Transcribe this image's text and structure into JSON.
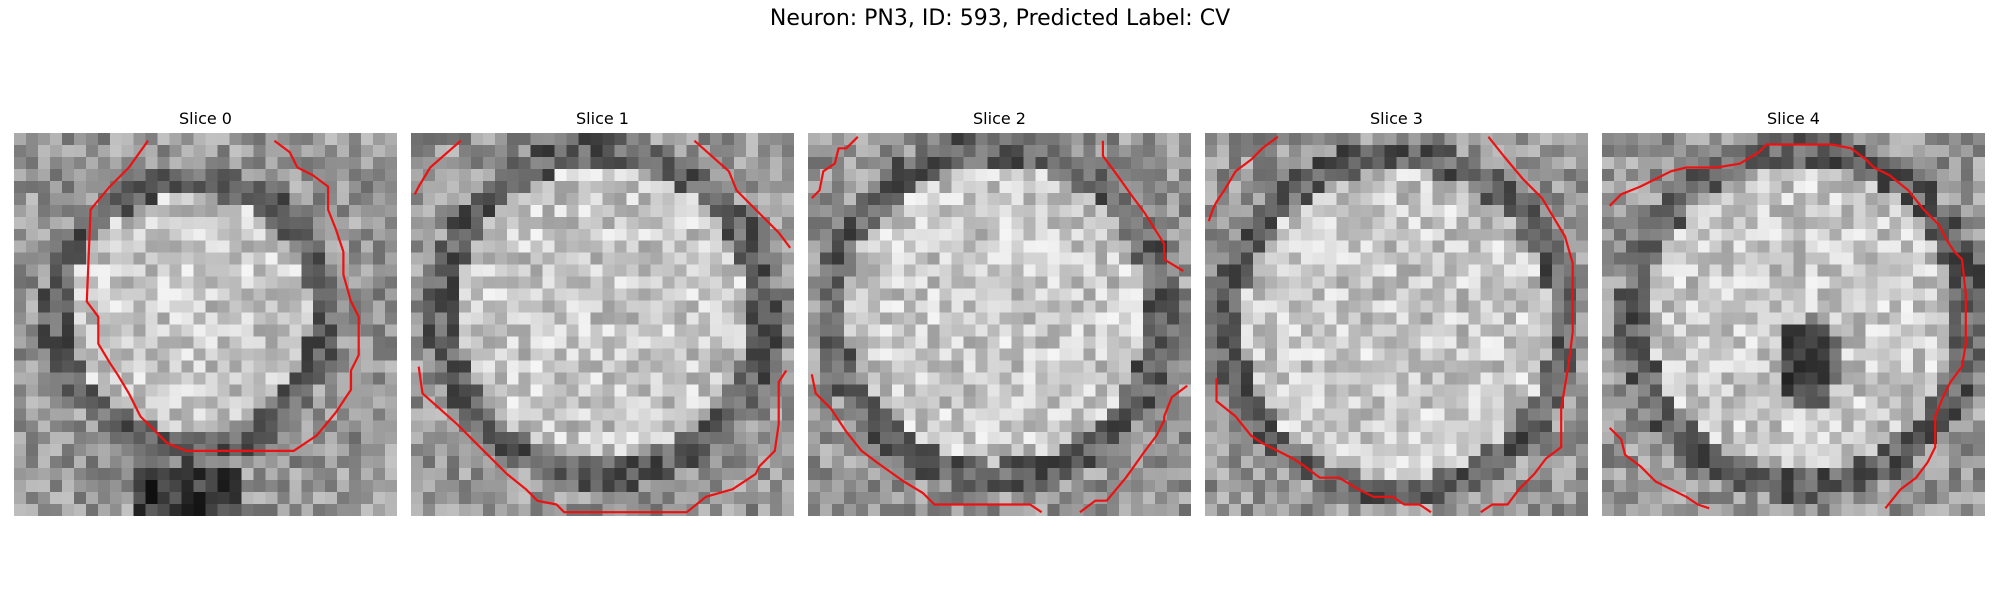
{
  "figure": {
    "title": "Neuron: PN3, ID: 593, Predicted Label: CV"
  },
  "contour_color": "#ee1111",
  "panels": [
    {
      "title": "Slice 0",
      "contours": [
        [
          [
            0.35,
            0.02
          ],
          [
            0.3,
            0.09
          ],
          [
            0.25,
            0.14
          ],
          [
            0.2,
            0.2
          ],
          [
            0.19,
            0.44
          ],
          [
            0.22,
            0.48
          ],
          [
            0.22,
            0.55
          ],
          [
            0.25,
            0.6
          ],
          [
            0.27,
            0.63
          ],
          [
            0.3,
            0.68
          ],
          [
            0.33,
            0.74
          ],
          [
            0.37,
            0.78
          ],
          [
            0.4,
            0.81
          ],
          [
            0.45,
            0.83
          ],
          [
            0.5,
            0.83
          ],
          [
            0.58,
            0.83
          ],
          [
            0.73,
            0.83
          ],
          [
            0.79,
            0.79
          ],
          [
            0.84,
            0.73
          ],
          [
            0.88,
            0.67
          ],
          [
            0.88,
            0.62
          ],
          [
            0.9,
            0.58
          ],
          [
            0.9,
            0.48
          ],
          [
            0.88,
            0.44
          ],
          [
            0.86,
            0.37
          ],
          [
            0.86,
            0.31
          ],
          [
            0.84,
            0.25
          ],
          [
            0.82,
            0.2
          ],
          [
            0.82,
            0.14
          ],
          [
            0.78,
            0.11
          ],
          [
            0.74,
            0.09
          ],
          [
            0.72,
            0.05
          ],
          [
            0.68,
            0.02
          ]
        ]
      ]
    },
    {
      "title": "Slice 1",
      "contours": [
        [
          [
            0.13,
            0.02
          ],
          [
            0.05,
            0.09
          ],
          [
            0.02,
            0.14
          ],
          [
            0.01,
            0.16
          ]
        ],
        [
          [
            0.74,
            0.02
          ],
          [
            0.83,
            0.1
          ],
          [
            0.85,
            0.15
          ],
          [
            0.9,
            0.2
          ],
          [
            0.96,
            0.26
          ],
          [
            0.99,
            0.3
          ]
        ],
        [
          [
            0.02,
            0.61
          ],
          [
            0.03,
            0.68
          ],
          [
            0.12,
            0.76
          ],
          [
            0.2,
            0.84
          ],
          [
            0.25,
            0.89
          ],
          [
            0.3,
            0.93
          ],
          [
            0.33,
            0.96
          ],
          [
            0.38,
            0.97
          ],
          [
            0.4,
            0.99
          ],
          [
            0.72,
            0.99
          ],
          [
            0.77,
            0.95
          ],
          [
            0.84,
            0.93
          ],
          [
            0.9,
            0.89
          ],
          [
            0.91,
            0.87
          ],
          [
            0.95,
            0.83
          ],
          [
            0.96,
            0.76
          ],
          [
            0.96,
            0.65
          ],
          [
            0.98,
            0.62
          ]
        ]
      ]
    },
    {
      "title": "Slice 2",
      "contours": [
        [
          [
            0.13,
            0.01
          ],
          [
            0.1,
            0.04
          ],
          [
            0.08,
            0.04
          ],
          [
            0.07,
            0.08
          ],
          [
            0.04,
            0.1
          ],
          [
            0.03,
            0.15
          ],
          [
            0.01,
            0.17
          ]
        ],
        [
          [
            0.77,
            0.02
          ],
          [
            0.77,
            0.06
          ],
          [
            0.8,
            0.1
          ],
          [
            0.85,
            0.17
          ],
          [
            0.88,
            0.21
          ],
          [
            0.93,
            0.29
          ],
          [
            0.93,
            0.33
          ],
          [
            0.98,
            0.36
          ]
        ],
        [
          [
            0.01,
            0.63
          ],
          [
            0.02,
            0.68
          ],
          [
            0.06,
            0.72
          ],
          [
            0.1,
            0.78
          ],
          [
            0.14,
            0.83
          ],
          [
            0.18,
            0.86
          ],
          [
            0.25,
            0.91
          ],
          [
            0.3,
            0.94
          ],
          [
            0.33,
            0.97
          ],
          [
            0.48,
            0.97
          ],
          [
            0.58,
            0.97
          ],
          [
            0.61,
            0.99
          ]
        ],
        [
          [
            0.71,
            0.99
          ],
          [
            0.75,
            0.96
          ],
          [
            0.78,
            0.96
          ],
          [
            0.83,
            0.9
          ],
          [
            0.88,
            0.83
          ],
          [
            0.91,
            0.79
          ],
          [
            0.93,
            0.75
          ],
          [
            0.93,
            0.74
          ],
          [
            0.95,
            0.69
          ],
          [
            0.99,
            0.66
          ]
        ]
      ]
    },
    {
      "title": "Slice 3",
      "contours": [
        [
          [
            0.19,
            0.01
          ],
          [
            0.15,
            0.04
          ],
          [
            0.12,
            0.07
          ],
          [
            0.08,
            0.1
          ],
          [
            0.05,
            0.15
          ],
          [
            0.03,
            0.18
          ],
          [
            0.02,
            0.2
          ],
          [
            0.01,
            0.23
          ]
        ],
        [
          [
            0.74,
            0.01
          ],
          [
            0.78,
            0.06
          ],
          [
            0.83,
            0.12
          ],
          [
            0.88,
            0.17
          ],
          [
            0.91,
            0.22
          ],
          [
            0.94,
            0.27
          ],
          [
            0.96,
            0.34
          ],
          [
            0.96,
            0.45
          ],
          [
            0.96,
            0.52
          ],
          [
            0.95,
            0.6
          ],
          [
            0.93,
            0.72
          ],
          [
            0.93,
            0.82
          ],
          [
            0.89,
            0.85
          ],
          [
            0.86,
            0.89
          ],
          [
            0.82,
            0.93
          ],
          [
            0.79,
            0.97
          ],
          [
            0.75,
            0.97
          ],
          [
            0.72,
            0.99
          ]
        ],
        [
          [
            0.03,
            0.64
          ],
          [
            0.03,
            0.7
          ],
          [
            0.08,
            0.74
          ],
          [
            0.12,
            0.79
          ],
          [
            0.15,
            0.81
          ],
          [
            0.19,
            0.83
          ],
          [
            0.23,
            0.85
          ],
          [
            0.26,
            0.87
          ],
          [
            0.3,
            0.9
          ],
          [
            0.35,
            0.9
          ],
          [
            0.4,
            0.93
          ],
          [
            0.44,
            0.95
          ],
          [
            0.49,
            0.95
          ],
          [
            0.52,
            0.97
          ],
          [
            0.56,
            0.97
          ],
          [
            0.59,
            0.99
          ]
        ]
      ]
    },
    {
      "title": "Slice 4",
      "contours": [
        [
          [
            0.02,
            0.19
          ],
          [
            0.05,
            0.16
          ],
          [
            0.1,
            0.14
          ],
          [
            0.14,
            0.12
          ],
          [
            0.18,
            0.1
          ],
          [
            0.22,
            0.09
          ],
          [
            0.3,
            0.09
          ],
          [
            0.36,
            0.08
          ],
          [
            0.41,
            0.05
          ],
          [
            0.43,
            0.03
          ],
          [
            0.6,
            0.03
          ],
          [
            0.65,
            0.04
          ],
          [
            0.69,
            0.07
          ],
          [
            0.71,
            0.09
          ],
          [
            0.75,
            0.11
          ],
          [
            0.8,
            0.15
          ],
          [
            0.84,
            0.2
          ],
          [
            0.88,
            0.24
          ],
          [
            0.9,
            0.28
          ],
          [
            0.92,
            0.31
          ],
          [
            0.94,
            0.33
          ],
          [
            0.95,
            0.42
          ],
          [
            0.95,
            0.55
          ],
          [
            0.94,
            0.61
          ],
          [
            0.91,
            0.65
          ],
          [
            0.89,
            0.69
          ],
          [
            0.87,
            0.74
          ],
          [
            0.87,
            0.82
          ],
          [
            0.85,
            0.86
          ],
          [
            0.82,
            0.9
          ],
          [
            0.78,
            0.93
          ],
          [
            0.74,
            0.98
          ]
        ],
        [
          [
            0.02,
            0.77
          ],
          [
            0.05,
            0.8
          ],
          [
            0.06,
            0.84
          ],
          [
            0.1,
            0.87
          ],
          [
            0.14,
            0.91
          ],
          [
            0.18,
            0.93
          ],
          [
            0.22,
            0.95
          ],
          [
            0.25,
            0.97
          ],
          [
            0.28,
            0.98
          ]
        ]
      ]
    }
  ]
}
